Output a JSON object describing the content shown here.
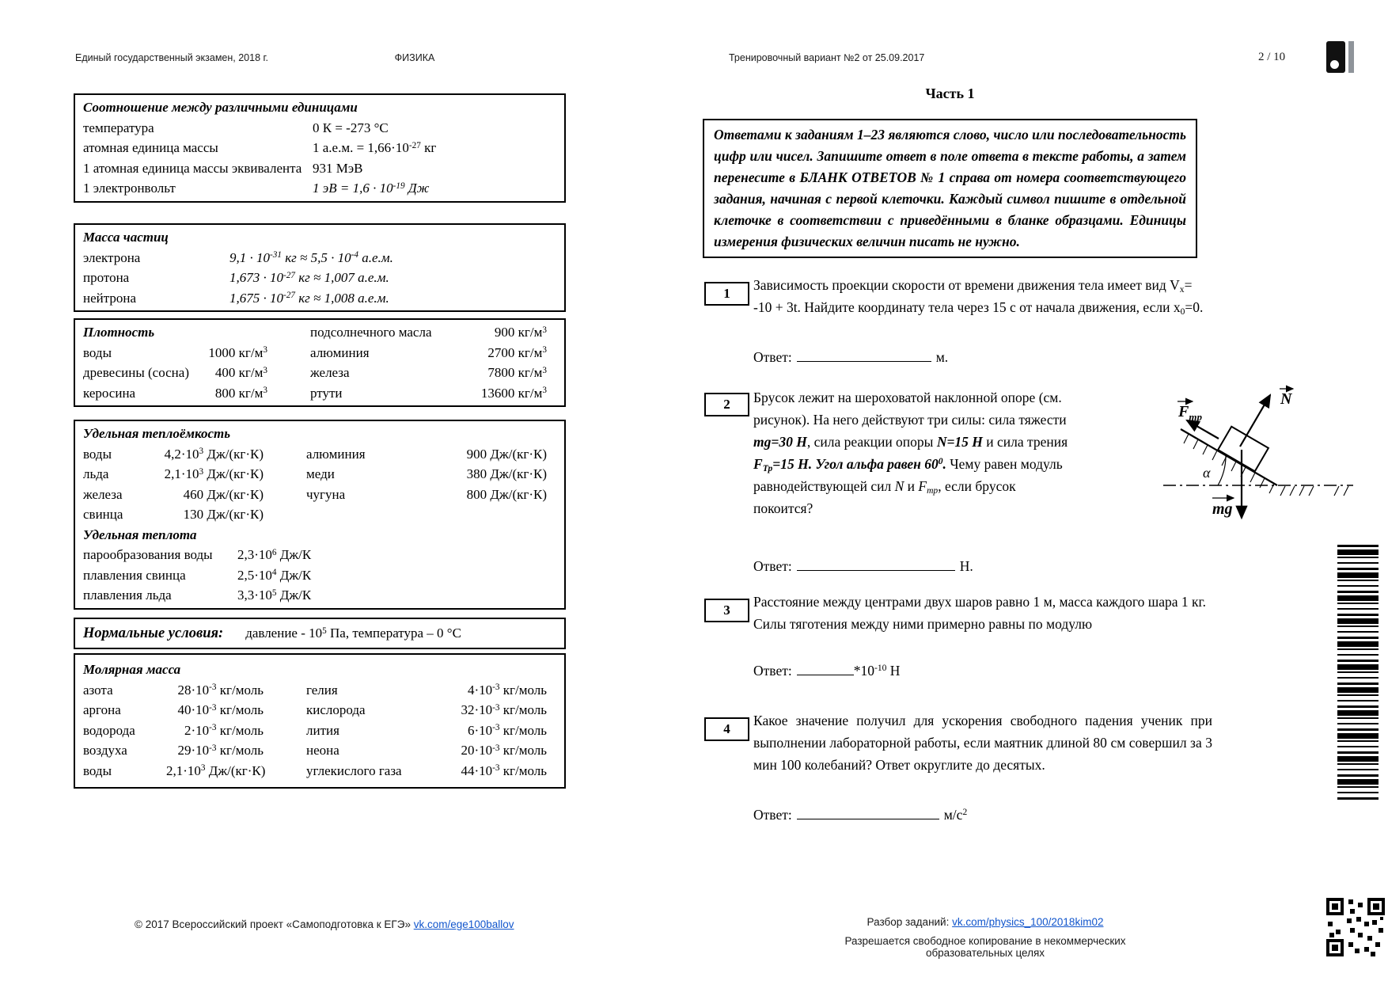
{
  "header": {
    "left": "Единый государственный экзамен, 2018 г.",
    "subject": "ФИЗИКА",
    "variant": "Тренировочный вариант №2  от 25.09.2017",
    "page": "2 / 10"
  },
  "reference": {
    "units": {
      "title": "Соотношение между различными единицами",
      "rows": [
        {
          "label": "температура",
          "value": "0 К = -273 °С"
        },
        {
          "label": "атомная единица массы",
          "value": "1 а.е.м. = 1,66·10^{-27} кг"
        },
        {
          "label": "1 атомная единица массы эквивалента",
          "value": "931 МэВ"
        },
        {
          "label": "1 электронвольт",
          "value": "1 эВ = 1,6 · 10^{-19} Дж"
        }
      ]
    },
    "particle_mass": {
      "title": "Масса частиц",
      "rows": [
        {
          "label": "электрона",
          "value": "9,1 · 10^{-31} кг ≈ 5,5 · 10^{-4} а.е.м."
        },
        {
          "label": "протона",
          "value": "1,673 · 10^{-27} кг ≈ 1,007 а.е.м."
        },
        {
          "label": "нейтрона",
          "value": "1,675 · 10^{-27} кг ≈ 1,008 а.е.м."
        }
      ]
    },
    "density": {
      "title": "Плотность",
      "rows": [
        {
          "l1": "",
          "v1": "",
          "l2": "подсолнечного масла",
          "v2": "900 кг/м^{3}"
        },
        {
          "l1": "воды",
          "v1": "1000 кг/м^{3}",
          "l2": "алюминия",
          "v2": "2700 кг/м^{3}"
        },
        {
          "l1": "древесины (сосна)",
          "v1": "400 кг/м^{3}",
          "l2": "железа",
          "v2": "7800 кг/м^{3}"
        },
        {
          "l1": "керосина",
          "v1": "800 кг/м^{3}",
          "l2": "ртути",
          "v2": "13600 кг/м^{3}"
        }
      ]
    },
    "heat_capacity": {
      "title": "Удельная теплоёмкость",
      "rows": [
        {
          "l1": "воды",
          "v1": "4,2·10^{3} Дж/(кг·К)",
          "l2": "алюминия",
          "v2": "900 Дж/(кг·К)"
        },
        {
          "l1": "льда",
          "v1": "2,1·10^{3} Дж/(кг·К)",
          "l2": "меди",
          "v2": "380 Дж/(кг·К)"
        },
        {
          "l1": "железа",
          "v1": "460 Дж/(кг·К)",
          "l2": "чугуна",
          "v2": "800 Дж/(кг·К)"
        },
        {
          "l1": "свинца",
          "v1": "130 Дж/(кг·К)",
          "l2": "",
          "v2": ""
        }
      ],
      "subtitle": "Удельная теплота",
      "heat_rows": [
        {
          "label": "парообразования воды",
          "value": "2,3·10^{6} Дж/К"
        },
        {
          "label": "плавления свинца",
          "value": "2,5·10^{4} Дж/К"
        },
        {
          "label": "плавления льда",
          "value": "3,3·10^{5} Дж/К"
        }
      ]
    },
    "normal_conditions": {
      "title": "Нормальные условия:",
      "text": "давление - 10^{5} Па, температура – 0 °С"
    },
    "molar_mass": {
      "title": "Молярная масса",
      "rows": [
        {
          "l1": "азота",
          "v1": "28·10^{-3} кг/моль",
          "l2": "гелия",
          "v2": "4·10^{-3} кг/моль"
        },
        {
          "l1": "аргона",
          "v1": "40·10^{-3} кг/моль",
          "l2": "кислорода",
          "v2": "32·10^{-3} кг/моль"
        },
        {
          "l1": "водорода",
          "v1": "2·10^{-3} кг/моль",
          "l2": "лития",
          "v2": "6·10^{-3} кг/моль"
        },
        {
          "l1": "воздуха",
          "v1": "29·10^{-3} кг/моль",
          "l2": "неона",
          "v2": "20·10^{-3} кг/моль"
        },
        {
          "l1": "воды",
          "v1": "2,1·10^{3} Дж/(кг·К)",
          "l2": "углекислого газа",
          "v2": "44·10^{-3} кг/моль"
        }
      ]
    }
  },
  "part1": {
    "title": "Часть 1",
    "instruction": "Ответами к заданиям 1–23 являются слово, число или последовательность цифр или чисел. Запишите ответ в поле ответа в тексте работы, а затем перенесите в БЛАНК ОТВЕТОВ № 1 справа от номера соответствующего задания, начиная с первой клеточки. Каждый символ пишите в отдельной клеточке в соответствии с приведёнными в бланке образцами. Единицы измерения физических величин писать не нужно."
  },
  "questions": {
    "q1": {
      "number": "1",
      "text": "Зависимость проекции скорости от времени движения тела имеет вид V_{x}= -10 + 3t. Найдите координату тела через 15 с от начала движения, если x_{0}=0.",
      "answer_label": "Ответ:",
      "unit": "м."
    },
    "q2": {
      "number": "2",
      "s1": "Брусок лежит на шероховатой наклонной опоре (см. рисунок). На него действуют три силы: сила тяжести ",
      "s2": "mg=30 Н",
      "s3": ", сила реакции опоры ",
      "s4": "N=15 Н",
      "s5": " и сила трения ",
      "s6": "F_{Тр}=15 Н. Угол альфа равен 60^{0}.",
      "s7": " Чему равен модуль равнодействующей сил ",
      "s8": "N",
      "s9": " и ",
      "s10": "F_{тр}",
      "s11": ", если брусок покоится?",
      "answer_label": "Ответ:",
      "unit": "Н.",
      "figure": {
        "friction": "F",
        "friction_sub": "тр",
        "normal": "N",
        "gravity": "mg",
        "alpha": "α"
      }
    },
    "q3": {
      "number": "3",
      "text": "Расстояние между центрами двух шаров равно 1 м, масса каждого шара 1 кг. Силы тяготения между ними примерно равны по модулю",
      "answer_label": "Ответ:",
      "suffix": "*10^{-10} Н"
    },
    "q4": {
      "number": "4",
      "text": "Какое значение получил для ускорения свободного падения ученик при выполнении лабораторной работы, если маятник длиной 80 см совершил за 3 мин 100 колебаний? Ответ округлите до десятых.",
      "answer_label": "Ответ:",
      "unit": "м/с^{2}"
    }
  },
  "footer": {
    "left_text": "© 2017 Всероссийский проект «Самоподготовка к ЕГЭ» ",
    "left_link": "vk.com/ege100ballov",
    "right_label": "Разбор заданий: ",
    "right_link": "vk.com/physics_100/2018kim02",
    "note": "Разрешается свободное копирование в некоммерческих образовательных целях"
  }
}
